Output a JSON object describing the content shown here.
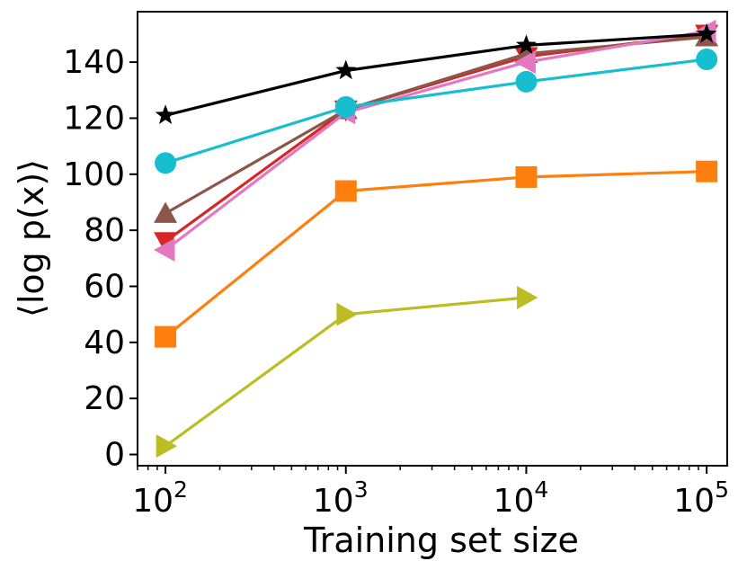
{
  "chart_data": {
    "type": "line",
    "title": "",
    "xlabel": "Training set size",
    "ylabel": "⟨log p(x)⟩",
    "x": [
      100,
      1000,
      10000,
      100000
    ],
    "xscale": "log",
    "xlim": [
      70,
      130000
    ],
    "ylim": [
      -4,
      158
    ],
    "x_ticks": [
      {
        "value": 100,
        "base": "10",
        "exp": "2"
      },
      {
        "value": 1000,
        "base": "10",
        "exp": "3"
      },
      {
        "value": 10000,
        "base": "10",
        "exp": "4"
      },
      {
        "value": 100000,
        "base": "10",
        "exp": "5"
      }
    ],
    "y_ticks": [
      0,
      20,
      40,
      60,
      80,
      100,
      120,
      140
    ],
    "grid": false,
    "legend": "none",
    "series": [
      {
        "name": "series-yellowgreen",
        "color": "#bcbd22",
        "marker": "triangle-right",
        "values": [
          3,
          50,
          56,
          null
        ]
      },
      {
        "name": "series-orange",
        "color": "#ff7f0e",
        "marker": "square",
        "values": [
          42,
          94,
          99,
          101
        ]
      },
      {
        "name": "series-red",
        "color": "#d62728",
        "marker": "triangle-down",
        "values": [
          76,
          123,
          142,
          150
        ]
      },
      {
        "name": "series-brown",
        "color": "#8c564b",
        "marker": "triangle-up",
        "values": [
          86,
          123,
          143,
          149
        ]
      },
      {
        "name": "series-pink",
        "color": "#e377c2",
        "marker": "triangle-left",
        "values": [
          73,
          122,
          140,
          151
        ]
      },
      {
        "name": "series-cyan",
        "color": "#17becf",
        "marker": "circle",
        "values": [
          104,
          124,
          133,
          141
        ]
      },
      {
        "name": "series-black",
        "color": "#000000",
        "marker": "star",
        "values": [
          121,
          137,
          146,
          150
        ]
      }
    ]
  }
}
